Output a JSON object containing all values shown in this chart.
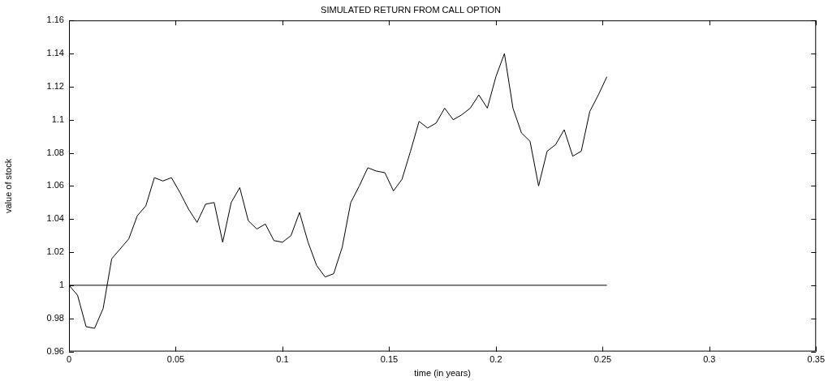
{
  "chart_data": {
    "type": "line",
    "title": "SIMULATED RETURN FROM CALL OPTION",
    "xlabel": "time (in years)",
    "ylabel": "value of stock",
    "xlim": [
      0,
      0.35
    ],
    "xticks": [
      0,
      0.05,
      0.1,
      0.15,
      0.2,
      0.25,
      0.3,
      0.35
    ],
    "ylim": [
      0.96,
      1.16
    ],
    "yticks": [
      0.96,
      0.98,
      1,
      1.02,
      1.04,
      1.06,
      1.08,
      1.1,
      1.12,
      1.14,
      1.16
    ],
    "grid": false,
    "legend": false,
    "marker": "none",
    "line_style": "solid",
    "series": [
      {
        "color": "#000000",
        "x": [
          0,
          0.004,
          0.008,
          0.012,
          0.016,
          0.02,
          0.024,
          0.028,
          0.032,
          0.036,
          0.04,
          0.044,
          0.048,
          0.052,
          0.056,
          0.06,
          0.064,
          0.068,
          0.072,
          0.076,
          0.08,
          0.084,
          0.088,
          0.092,
          0.096,
          0.1,
          0.104,
          0.108,
          0.112,
          0.116,
          0.12,
          0.124,
          0.128,
          0.132,
          0.136,
          0.14,
          0.144,
          0.148,
          0.152,
          0.156,
          0.16,
          0.164,
          0.168,
          0.172,
          0.176,
          0.18,
          0.184,
          0.188,
          0.192,
          0.196,
          0.2,
          0.204,
          0.208,
          0.212,
          0.216,
          0.22,
          0.224,
          0.228,
          0.232,
          0.236,
          0.24,
          0.244,
          0.248,
          0.252
        ],
        "values": [
          1.0,
          0.994,
          0.975,
          0.974,
          0.986,
          1.016,
          1.022,
          1.028,
          1.042,
          1.048,
          1.065,
          1.063,
          1.065,
          1.056,
          1.046,
          1.038,
          1.049,
          1.05,
          1.026,
          1.05,
          1.059,
          1.039,
          1.034,
          1.037,
          1.027,
          1.026,
          1.03,
          1.044,
          1.026,
          1.012,
          1.005,
          1.007,
          1.023,
          1.05,
          1.06,
          1.071,
          1.069,
          1.068,
          1.057,
          1.064,
          1.081,
          1.099,
          1.095,
          1.098,
          1.107,
          1.1,
          1.103,
          1.107,
          1.115,
          1.107,
          1.126,
          1.14,
          1.107,
          1.092,
          1.087,
          1.06,
          1.081,
          1.085,
          1.094,
          1.078,
          1.081,
          1.105,
          1.115,
          1.126
        ]
      },
      {
        "color": "#000000",
        "x": [
          0,
          0.252
        ],
        "values": [
          1,
          1
        ]
      }
    ]
  }
}
